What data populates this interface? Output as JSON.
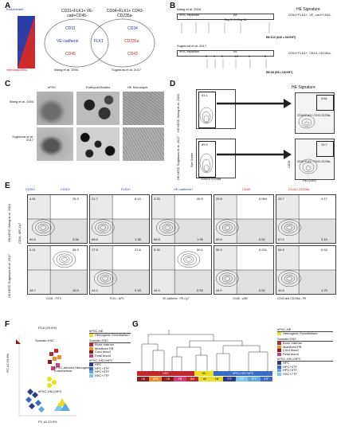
{
  "panels": [
    "A",
    "B",
    "C",
    "D",
    "E",
    "F",
    "G"
  ],
  "panelA": {
    "side_top": "Endothelial+",
    "side_bottom": "Hematopoietic-",
    "left_header": "CD31+FLK1+ VE-cad+CD45-",
    "right_header": "CD34+FLK1+ CD43-CD235a-",
    "left_markers": [
      "CD31",
      "VE-cadherin",
      "CD45"
    ],
    "shared_marker": "FLK1",
    "right_markers": [
      "CD34",
      "CD235a",
      "CD43"
    ],
    "left_caption": "Wang et al. 2004",
    "right_caption": "Sugimura et al. 2017"
  },
  "panelB": {
    "title": "HE Signature",
    "row1_ref": "Wang et al. 2004",
    "row1_stage1": "hPSC expansion",
    "row1_stage2": "EB",
    "row1_days": "Day 3 / 6 / Day 10",
    "row1_result": "CD31+FLK1+ VE-cad+CD45-",
    "row1_eb": "EB D10 (D10 = D8 EHT)",
    "row2_ref": "Sugimura et al. 2017",
    "row2_stage1": "hPSC expansion",
    "row2_stage2": "EB",
    "row2_days": [
      "0",
      "1",
      "2",
      "4-5",
      "6",
      "8"
    ],
    "row2_result": "CD34+FLK1+ CD43-CD235a-",
    "row2_eb": "EB D8 (D8 = D8 EHT)"
  },
  "panelC": {
    "col_headers": [
      "hPSC",
      "Embryoid Bodies",
      "HE Monolayer"
    ],
    "row_labels": [
      "Wang et al. 2004",
      "Sugimura et al. 2017"
    ]
  },
  "panelD": {
    "hesc_label_top": "H9 hESC Wang et al. 2004",
    "hesc_label_bottom": "H9 hESC Sugimura et al. 2017",
    "y_axis": "Side Scatter",
    "x_axis": "CD43 & CD235a",
    "gate_pct_top": "91.1",
    "gate_pct_bottom": "99.9",
    "sig_title": "HE Signature",
    "sig_pct_top": "3.81",
    "sig_pct_bottom": "13.7",
    "sig_label": "CD34+FLK1+ CD43-CD235a-",
    "sig_y": "CD34",
    "sig_x": "Flk1 (KDR)"
  },
  "panelE": {
    "col_titles": [
      "CD34+",
      "CD31+",
      "FLK1+",
      "VE-cadherin+",
      "CD45",
      "CD43 CD235a"
    ],
    "row_labels": [
      "H9 hESC Wang et al. 2004",
      "H9 hESC Sugimura et al. 2017"
    ],
    "y_axis": "CD34 - APC-Cy7",
    "x_axes": [
      "CD31 - FITC",
      "FLK1 - APC",
      "VE-cadherin - PE-Cy7",
      "CD45 - v450",
      "CD43 and CD235a - PE"
    ],
    "row1": [
      {
        "tl": "4.51",
        "tr": "25.3",
        "bl": "66.8",
        "br": "3.38"
      },
      {
        "tl": "21.7",
        "tr": "8.14",
        "bl": "66.8",
        "br": "1.38"
      },
      {
        "tl": "3.33",
        "tr": "26.5",
        "bl": "66.8",
        "br": "1.95"
      },
      {
        "tl": "29.8",
        "tr": "0.084",
        "bl": "69.6",
        "br": "0.52"
      },
      {
        "tl": "25.7",
        "tr": "4.17",
        "bl": "67.0",
        "br": "3.19"
      }
    ],
    "row2": [
      {
        "tl": "0.11",
        "tr": "55.3",
        "bl": "28.7",
        "br": "15.9"
      },
      {
        "tl": "17.8",
        "tr": "37.6",
        "bl": "44.0",
        "br": "0.18"
      },
      {
        "tl": "5.34",
        "tr": "50.1",
        "bl": "44.0",
        "br": "0.53"
      },
      {
        "tl": "55.4",
        "tr": "0.031",
        "bl": "44.0",
        "br": "0.52"
      },
      {
        "tl": "54.9",
        "tr": "0.53",
        "bl": "42.8",
        "br": "1.75"
      }
    ]
  },
  "panelF": {
    "title": "PCA (43.5%)",
    "xlabel": "PC #1 23.9%",
    "ylabel": "PC #2 19.6%",
    "labels": [
      "Somatic HSC",
      "hPSC-derived Hemogenic Endothelium",
      "hPSC-HSC/HPC"
    ],
    "legend": [
      {
        "group": "hPSC-HE",
        "items": [
          {
            "name": "Hemogenic Endothelium",
            "color": "#e9e020"
          }
        ]
      },
      {
        "group": "Somatic HSC",
        "items": [
          {
            "name": "Bone marrow",
            "color": "#c0262b"
          },
          {
            "name": "Mobilized PB",
            "color": "#ee8a2a"
          },
          {
            "name": "Cord blood",
            "color": "#8a1c1f"
          },
          {
            "name": "Fetal blood",
            "color": "#d23a80"
          }
        ]
      },
      {
        "group": "hPSC-HSC/HPC",
        "items": [
          {
            "name": "HPC",
            "color": "#2b3a8c"
          },
          {
            "name": "HPC+3TF",
            "color": "#3a6bc4"
          },
          {
            "name": "HPC+5TF",
            "color": "#5ea8e0"
          },
          {
            "name": "HSC+7TF",
            "color": "#7ac6ee"
          }
        ]
      }
    ]
  },
  "panelG": {
    "bar_labels": [
      "HSC",
      "HE",
      "hPSC-HSC/HPC"
    ],
    "sub_labels": [
      "CB",
      "MPB",
      "CB",
      "FB",
      "BM",
      "HE",
      "HE",
      "TTF",
      "7TF",
      "STF",
      "STF"
    ],
    "legend_ref": "same as F"
  }
}
